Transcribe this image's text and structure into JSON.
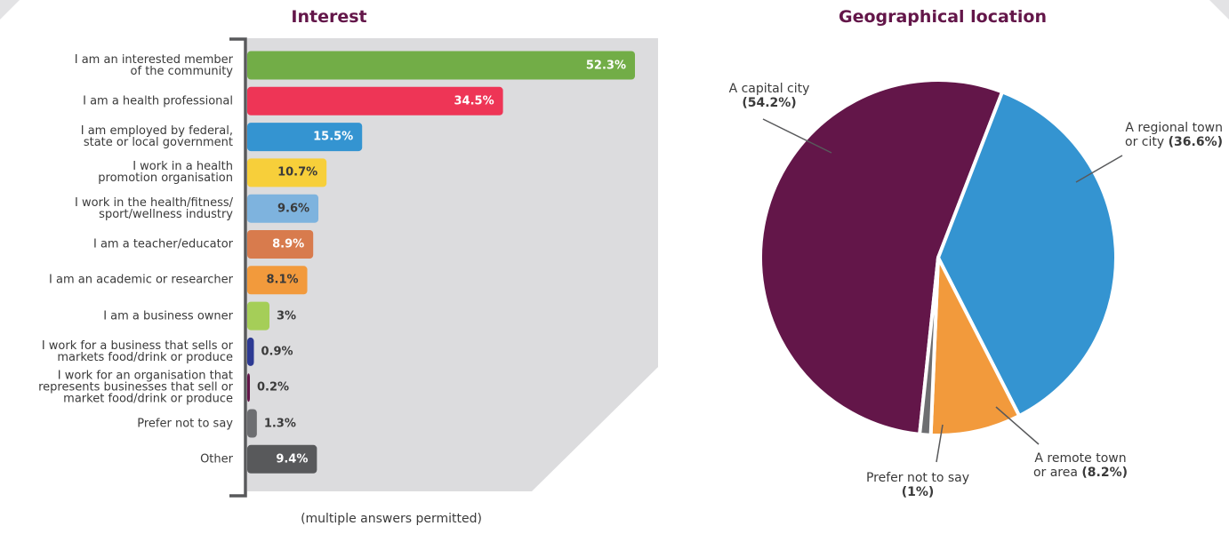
{
  "chart_data": [
    {
      "type": "bar",
      "orientation": "horizontal",
      "title": "Interest",
      "note": "(multiple answers permitted)",
      "categories": [
        "I am an interested member\nof the community",
        "I am a health professional",
        "I am employed by federal,\nstate or local government",
        "I work in a health\npromotion organisation",
        "I work in the health/fitness/\nsport/wellness industry",
        "I am a teacher/educator",
        "I am an academic or researcher",
        "I am a business owner",
        "I work for a business that sells or\nmarkets food/drink or produce",
        "I work for an organisation that\nrepresents businesses that sell or\nmarket food/drink or produce",
        "Prefer not to say",
        "Other"
      ],
      "values": [
        52.3,
        34.5,
        15.5,
        10.7,
        9.6,
        8.9,
        8.1,
        3,
        0.9,
        0.2,
        1.3,
        9.4
      ],
      "value_labels": [
        "52.3%",
        "34.5%",
        "15.5%",
        "10.7%",
        "9.6%",
        "8.9%",
        "8.1%",
        "3%",
        "0.9%",
        "0.2%",
        "1.3%",
        "9.4%"
      ],
      "colors": [
        "#72ad47",
        "#ee3556",
        "#3494d1",
        "#f7cf3a",
        "#7eb3de",
        "#d87b4d",
        "#f29a3c",
        "#a5ce58",
        "#2d3a93",
        "#631649",
        "#6d6e71",
        "#58595b"
      ],
      "label_inside": [
        true,
        true,
        true,
        true,
        true,
        true,
        true,
        false,
        false,
        false,
        false,
        true
      ],
      "label_text_colors": [
        "#ffffff",
        "#ffffff",
        "#ffffff",
        "#3a3a3a",
        "#3a3a3a",
        "#ffffff",
        "#3a3a3a",
        "#3a3a3a",
        "#3a3a3a",
        "#3a3a3a",
        "#3a3a3a",
        "#ffffff"
      ],
      "xlim": [
        0,
        52.3
      ]
    },
    {
      "type": "pie",
      "title": "Geographical location",
      "slices": [
        {
          "label": "A capital city",
          "value_label": "(54.2%)",
          "value": 54.2,
          "color": "#631649"
        },
        {
          "label": "A regional town\nor city",
          "value_label": "(36.6%)",
          "value": 36.6,
          "color": "#3494d1"
        },
        {
          "label": "A remote town\nor area",
          "value_label": "(8.2%)",
          "value": 8.2,
          "color": "#f29a3c"
        },
        {
          "label": "Prefer not to say",
          "value_label": "(1%)",
          "value": 1.0,
          "color": "#6d6e71"
        }
      ]
    }
  ]
}
